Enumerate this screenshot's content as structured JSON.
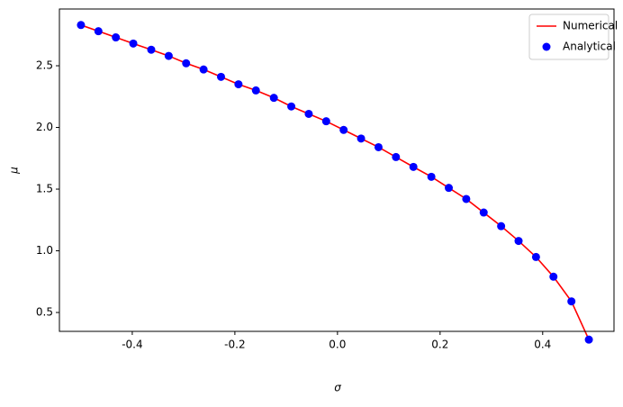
{
  "chart_data": {
    "type": "line",
    "xlabel": "σ",
    "ylabel": "μ",
    "x": [
      -0.5,
      -0.466,
      -0.432,
      -0.398,
      -0.363,
      -0.329,
      -0.295,
      -0.261,
      -0.227,
      -0.193,
      -0.159,
      -0.124,
      -0.09,
      -0.056,
      -0.022,
      0.012,
      0.046,
      0.08,
      0.114,
      0.148,
      0.183,
      0.217,
      0.251,
      0.285,
      0.319,
      0.353,
      0.387,
      0.421,
      0.456,
      0.49
    ],
    "series": [
      {
        "name": "Numerical",
        "color": "red",
        "kind": "line",
        "values": [
          2.83,
          2.78,
          2.73,
          2.68,
          2.63,
          2.58,
          2.52,
          2.47,
          2.41,
          2.35,
          2.3,
          2.24,
          2.17,
          2.11,
          2.05,
          1.98,
          1.91,
          1.84,
          1.76,
          1.68,
          1.6,
          1.51,
          1.42,
          1.31,
          1.2,
          1.08,
          0.95,
          0.79,
          0.59,
          0.28
        ]
      },
      {
        "name": "Analytical",
        "color": "blue",
        "kind": "scatter",
        "values": [
          2.83,
          2.78,
          2.73,
          2.68,
          2.63,
          2.58,
          2.52,
          2.47,
          2.41,
          2.35,
          2.3,
          2.24,
          2.17,
          2.11,
          2.05,
          1.98,
          1.91,
          1.84,
          1.76,
          1.68,
          1.6,
          1.51,
          1.42,
          1.31,
          1.2,
          1.08,
          0.95,
          0.79,
          0.59,
          0.28
        ]
      }
    ],
    "xlim": [
      -0.542,
      0.539
    ],
    "ylim": [
      0.347,
      2.96
    ],
    "xticks": [
      -0.4,
      -0.2,
      {
        "value": 0,
        "label": "0.0"
      },
      0.2,
      0.4
    ],
    "yticks": [
      0.5,
      {
        "value": 1,
        "label": "1.0"
      },
      1.5,
      {
        "value": 2,
        "label": "2.0"
      },
      2.5
    ],
    "legend": "upper right"
  }
}
